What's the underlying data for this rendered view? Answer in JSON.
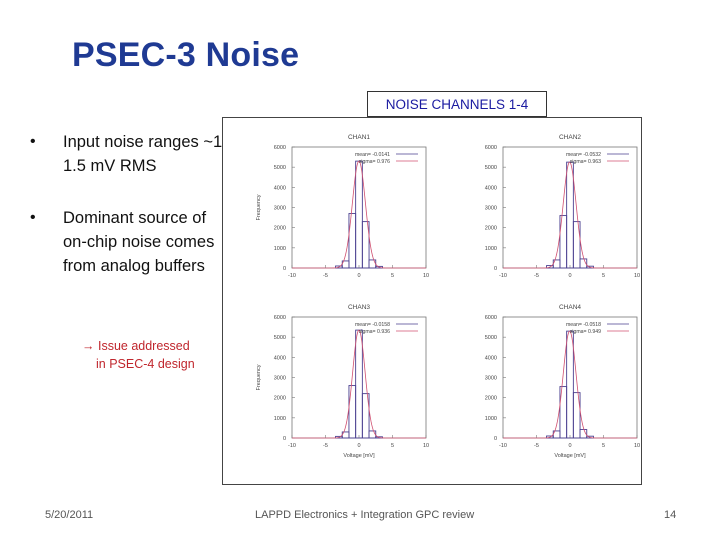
{
  "slide": {
    "title": "PSEC-3 Noise",
    "figure_label": "NOISE CHANNELS 1-4",
    "bullets": [
      "Input noise ranges ~1-1.5 mV RMS",
      "Dominant source of on-chip noise comes from analog buffers"
    ],
    "sub_note_line1": "→ Issue addressed",
    "sub_note_line2": "in PSEC-4 design",
    "footer_date": "5/20/2011",
    "footer_center": "LAPPD Electronics + Integration GPC review",
    "page_number": "14"
  },
  "colors": {
    "title": "#1f3a93",
    "figure_label_text": "#1a1aa0",
    "note": "#c0262d",
    "histogram": "#4a3f8f",
    "fit": "#d05070"
  },
  "chart_data": [
    {
      "type": "bar",
      "title": "CHAN1",
      "stats": [
        "mean= -0.0141",
        "sigma= 0.976"
      ],
      "ylabel": "Frequency",
      "xlabel": "",
      "xlim": [
        -10,
        10
      ],
      "ylim": [
        0,
        6000
      ],
      "xticks": [
        -10,
        -5,
        0,
        5,
        10
      ],
      "yticks": [
        0,
        1000,
        2000,
        3000,
        4000,
        5000,
        6000
      ],
      "categories": [
        -3,
        -2,
        -1,
        0,
        1,
        2,
        3
      ],
      "values": [
        100,
        350,
        2700,
        5300,
        2300,
        400,
        80
      ],
      "fit": {
        "mean": -0.0141,
        "sigma": 0.976,
        "peak": 5300
      }
    },
    {
      "type": "bar",
      "title": "CHAN2",
      "stats": [
        "mean= -0.0532",
        "sigma= 0.963"
      ],
      "ylabel": "",
      "xlabel": "",
      "xlim": [
        -10,
        10
      ],
      "ylim": [
        0,
        6000
      ],
      "xticks": [
        -10,
        -5,
        0,
        5,
        10
      ],
      "yticks": [
        0,
        1000,
        2000,
        3000,
        4000,
        5000,
        6000
      ],
      "categories": [
        -3,
        -2,
        -1,
        0,
        1,
        2,
        3
      ],
      "values": [
        120,
        400,
        2600,
        5250,
        2300,
        450,
        90
      ],
      "fit": {
        "mean": -0.0532,
        "sigma": 0.963,
        "peak": 5250
      }
    },
    {
      "type": "bar",
      "title": "CHAN3",
      "stats": [
        "mean= -0.0158",
        "sigma= 0.936"
      ],
      "ylabel": "Frequency",
      "xlabel": "Voltage [mV]",
      "xlim": [
        -10,
        10
      ],
      "ylim": [
        0,
        6000
      ],
      "xticks": [
        -10,
        -5,
        0,
        5,
        10
      ],
      "yticks": [
        0,
        1000,
        2000,
        3000,
        4000,
        5000,
        6000
      ],
      "categories": [
        -3,
        -2,
        -1,
        0,
        1,
        2,
        3
      ],
      "values": [
        80,
        300,
        2600,
        5350,
        2200,
        350,
        60
      ],
      "fit": {
        "mean": -0.0158,
        "sigma": 0.936,
        "peak": 5350
      }
    },
    {
      "type": "bar",
      "title": "CHAN4",
      "stats": [
        "mean= -0.0518",
        "sigma= 0.949"
      ],
      "ylabel": "",
      "xlabel": "Voltage [mV]",
      "xlim": [
        -10,
        10
      ],
      "ylim": [
        0,
        6000
      ],
      "xticks": [
        -10,
        -5,
        0,
        5,
        10
      ],
      "yticks": [
        0,
        1000,
        2000,
        3000,
        4000,
        5000,
        6000
      ],
      "categories": [
        -3,
        -2,
        -1,
        0,
        1,
        2,
        3
      ],
      "values": [
        100,
        350,
        2550,
        5300,
        2250,
        420,
        90
      ],
      "fit": {
        "mean": -0.0518,
        "sigma": 0.949,
        "peak": 5300
      }
    }
  ]
}
